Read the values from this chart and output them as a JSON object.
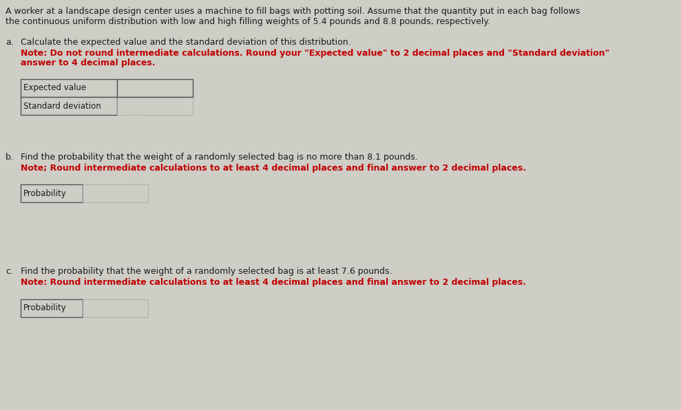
{
  "background_color": "#cecdc6",
  "title_text_line1": "A worker at a landscape design center uses a machine to fill bags with potting soil. Assume that the quantity put in each bag follows",
  "title_text_line2": "the continuous uniform distribution with low and high filling weights of 5.4 pounds and 8.8 pounds, respectively.",
  "section_a_label": "a.",
  "section_a_line1": "Calculate the expected value and the standard deviation of this distribution.",
  "section_a_note_line1": "Note: Do not round intermediate calculations. Round your \"Expected value\" to 2 decimal places and \"Standard deviation\"",
  "section_a_note_line2": "answer to 4 decimal places.",
  "section_b_label": "b.",
  "section_b_line1": "Find the probability that the weight of a randomly selected bag is no more than 8.1 pounds.",
  "section_b_note": "Note; Round intermediate calculations to at least 4 decimal places and final answer to 2 decimal places.",
  "section_c_label": "c.",
  "section_c_line1": "Find the probability that the weight of a randomly selected bag is at least 7.6 pounds.",
  "section_c_note": "Note: Round intermediate calculations to at least 4 decimal places and final answer to 2 decimal places.",
  "table_a_rows": [
    "Expected value",
    "Standard deviation"
  ],
  "table_b_row": "Probability",
  "table_c_row": "Probability",
  "normal_color": "#1a1a1a",
  "red_color": "#c00000",
  "border_color_solid": "#555555",
  "border_color_dotted": "#777777",
  "label_cell_color": "#cecdc6",
  "input_cell_color": "#cecdc6",
  "title_fontsize": 9.0,
  "body_fontsize": 9.0,
  "table_fontsize": 8.5
}
